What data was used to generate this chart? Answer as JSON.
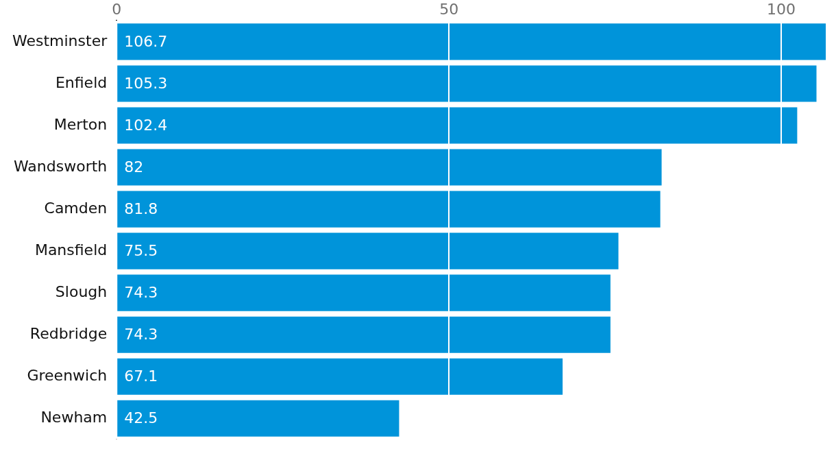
{
  "chart_data": {
    "type": "bar",
    "orientation": "horizontal",
    "categories": [
      "Westminster",
      "Enfield",
      "Merton",
      "Wandsworth",
      "Camden",
      "Mansfield",
      "Slough",
      "Redbridge",
      "Greenwich",
      "Newham"
    ],
    "values": [
      106.7,
      105.3,
      102.4,
      82,
      81.8,
      75.5,
      74.3,
      74.3,
      67.1,
      42.5
    ],
    "color": "#0094da",
    "xlim": [
      0,
      107
    ],
    "xticks": [
      0,
      50,
      100
    ],
    "grid": "x",
    "data_labels": true
  }
}
